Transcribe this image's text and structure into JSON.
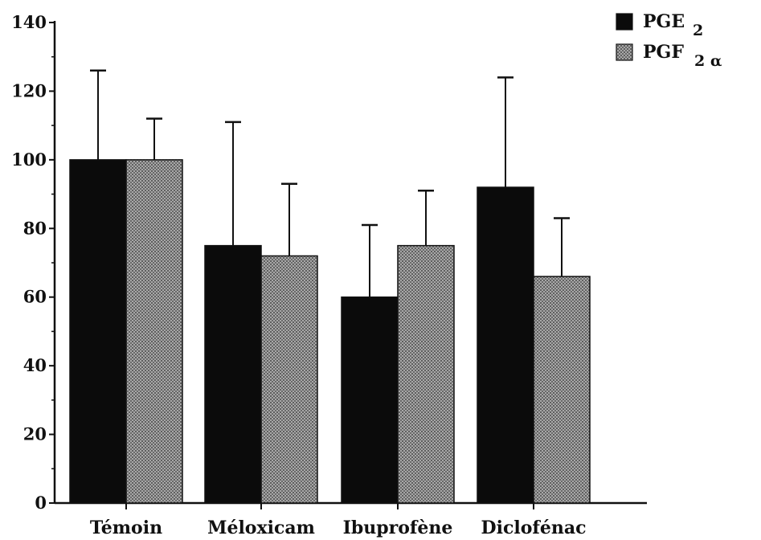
{
  "chart_data": {
    "type": "bar",
    "categories": [
      "Témoin",
      "Méloxicam",
      "Ibuprofène",
      "Diclofénac"
    ],
    "series": [
      {
        "name": "PGE",
        "name_sub": "2",
        "color": "#0b0b0b",
        "values": [
          100,
          75,
          60,
          92
        ],
        "errors": [
          26,
          36,
          21,
          32
        ]
      },
      {
        "name": "PGF",
        "name_sub": "2 α",
        "color": "#8a8a8a",
        "values": [
          100,
          72,
          75,
          66
        ],
        "errors": [
          12,
          21,
          16,
          17
        ]
      }
    ],
    "ylim": [
      0,
      140
    ],
    "yticks": [
      0,
      20,
      40,
      60,
      80,
      100,
      120,
      140
    ],
    "legend_position": "top-right",
    "grid": false
  }
}
